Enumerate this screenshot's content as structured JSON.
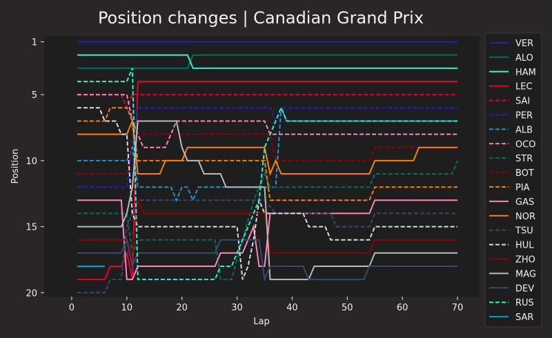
{
  "chart_data": {
    "type": "line",
    "title": "Position changes | Canadian Grand Prix",
    "xlabel": "Lap",
    "ylabel": "Position",
    "xlim": [
      -5,
      74
    ],
    "ylim": [
      20.3,
      0.6
    ],
    "y_inverted": true,
    "xticks": [
      0,
      10,
      20,
      30,
      40,
      50,
      60,
      70
    ],
    "yticks": [
      1,
      5,
      10,
      15,
      20
    ],
    "grid": false,
    "legend_position": "right-outside",
    "series": [
      {
        "name": "VER",
        "color": "#1e1ecc",
        "dash": false,
        "points": [
          [
            1,
            1
          ],
          [
            70,
            1
          ]
        ]
      },
      {
        "name": "ALO",
        "color": "#006f62",
        "dash": false,
        "points": [
          [
            1,
            3
          ],
          [
            21,
            3
          ],
          [
            22,
            2
          ],
          [
            70,
            2
          ]
        ]
      },
      {
        "name": "HAM",
        "color": "#27f4d2",
        "dash": false,
        "points": [
          [
            1,
            2
          ],
          [
            21,
            2
          ],
          [
            22,
            3
          ],
          [
            70,
            3
          ]
        ]
      },
      {
        "name": "LEC",
        "color": "#e8002d",
        "dash": false,
        "points": [
          [
            1,
            19
          ],
          [
            6,
            19
          ],
          [
            7,
            18
          ],
          [
            9,
            18
          ],
          [
            10,
            17
          ],
          [
            11,
            19
          ],
          [
            12,
            4
          ],
          [
            70,
            4
          ]
        ]
      },
      {
        "name": "SAI",
        "color": "#e8002d",
        "dash": true,
        "points": [
          [
            1,
            5
          ],
          [
            9,
            5
          ],
          [
            10,
            6
          ],
          [
            11,
            5
          ],
          [
            12,
            5
          ],
          [
            70,
            5
          ]
        ]
      },
      {
        "name": "PER",
        "color": "#1e1ecc",
        "dash": true,
        "points": [
          [
            1,
            12
          ],
          [
            10,
            12
          ],
          [
            11,
            9
          ],
          [
            12,
            6
          ],
          [
            36,
            6
          ],
          [
            37,
            7
          ],
          [
            38,
            6
          ],
          [
            70,
            6
          ]
        ]
      },
      {
        "name": "ALB",
        "color": "#2293d1",
        "dash": true,
        "points": [
          [
            1,
            10
          ],
          [
            10,
            10
          ],
          [
            11,
            9
          ],
          [
            12,
            12
          ],
          [
            18,
            12
          ],
          [
            19,
            13
          ],
          [
            20,
            12
          ],
          [
            21,
            12
          ],
          [
            22,
            13
          ],
          [
            23,
            12
          ],
          [
            37,
            12
          ],
          [
            38,
            6
          ],
          [
            39,
            7
          ],
          [
            70,
            7
          ]
        ]
      },
      {
        "name": "OCO",
        "color": "#ff87bc",
        "dash": true,
        "points": [
          [
            1,
            5
          ],
          [
            10,
            5
          ],
          [
            11,
            7
          ],
          [
            12,
            8
          ],
          [
            13,
            9
          ],
          [
            17,
            9
          ],
          [
            18,
            8
          ],
          [
            19,
            7
          ],
          [
            35,
            7
          ],
          [
            36,
            8
          ],
          [
            37,
            8
          ],
          [
            54,
            8
          ],
          [
            55,
            8
          ],
          [
            70,
            8
          ]
        ]
      },
      {
        "name": "STR",
        "color": "#006f62",
        "dash": true,
        "points": [
          [
            1,
            14
          ],
          [
            10,
            14
          ],
          [
            11,
            17
          ],
          [
            12,
            16
          ],
          [
            26,
            16
          ],
          [
            27,
            19
          ],
          [
            28,
            19
          ],
          [
            29,
            19
          ],
          [
            33,
            13
          ],
          [
            34,
            12
          ],
          [
            35,
            11
          ],
          [
            36,
            12
          ],
          [
            54,
            12
          ],
          [
            55,
            11
          ],
          [
            69,
            11
          ],
          [
            70,
            10
          ]
        ]
      },
      {
        "name": "BOT",
        "color": "#900000",
        "dash": true,
        "points": [
          [
            1,
            11
          ],
          [
            10,
            11
          ],
          [
            11,
            8
          ],
          [
            36,
            8
          ],
          [
            37,
            10
          ],
          [
            54,
            10
          ],
          [
            55,
            9
          ],
          [
            70,
            9
          ]
        ]
      },
      {
        "name": "PIA",
        "color": "#ff8000",
        "dash": true,
        "points": [
          [
            1,
            7
          ],
          [
            6,
            7
          ],
          [
            7,
            6
          ],
          [
            10,
            6
          ],
          [
            11,
            7
          ],
          [
            12,
            10
          ],
          [
            35,
            10
          ],
          [
            36,
            13
          ],
          [
            54,
            13
          ],
          [
            55,
            12
          ],
          [
            70,
            12
          ]
        ]
      },
      {
        "name": "GAS",
        "color": "#ff87bc",
        "dash": false,
        "points": [
          [
            1,
            13
          ],
          [
            9,
            13
          ],
          [
            10,
            19
          ],
          [
            11,
            19
          ],
          [
            12,
            18
          ],
          [
            26,
            18
          ],
          [
            27,
            17
          ],
          [
            31,
            17
          ],
          [
            32,
            16
          ],
          [
            33,
            15
          ],
          [
            34,
            18
          ],
          [
            35,
            18
          ],
          [
            36,
            14
          ],
          [
            42,
            14
          ],
          [
            43,
            14
          ],
          [
            54,
            14
          ],
          [
            55,
            13
          ],
          [
            70,
            13
          ]
        ]
      },
      {
        "name": "NOR",
        "color": "#ff8000",
        "dash": false,
        "points": [
          [
            1,
            8
          ],
          [
            10,
            8
          ],
          [
            11,
            7
          ],
          [
            12,
            11
          ],
          [
            16,
            11
          ],
          [
            17,
            10
          ],
          [
            20,
            10
          ],
          [
            21,
            9
          ],
          [
            35,
            9
          ],
          [
            36,
            11
          ],
          [
            37,
            10
          ],
          [
            38,
            11
          ],
          [
            54,
            11
          ],
          [
            55,
            10
          ],
          [
            62,
            10
          ],
          [
            63,
            9
          ],
          [
            70,
            9
          ]
        ]
      },
      {
        "name": "TSU",
        "color": "#364a70",
        "dash": true,
        "points": [
          [
            1,
            20
          ],
          [
            6,
            20
          ],
          [
            7,
            19
          ],
          [
            9,
            19
          ],
          [
            10,
            15
          ],
          [
            11,
            14
          ],
          [
            12,
            13
          ],
          [
            34,
            13
          ],
          [
            35,
            13
          ],
          [
            37,
            14
          ],
          [
            47,
            14
          ],
          [
            48,
            15
          ],
          [
            54,
            15
          ],
          [
            55,
            14
          ],
          [
            70,
            14
          ]
        ]
      },
      {
        "name": "HUL",
        "color": "#dddddd",
        "dash": true,
        "points": [
          [
            1,
            6
          ],
          [
            5,
            6
          ],
          [
            6,
            7
          ],
          [
            8,
            7
          ],
          [
            9,
            8
          ],
          [
            10,
            8
          ],
          [
            11,
            14
          ],
          [
            12,
            15
          ],
          [
            30,
            15
          ],
          [
            31,
            19
          ],
          [
            32,
            18
          ],
          [
            33,
            16
          ],
          [
            34,
            13
          ],
          [
            35,
            14
          ],
          [
            36,
            14
          ],
          [
            42,
            14
          ],
          [
            43,
            15
          ],
          [
            46,
            15
          ],
          [
            47,
            16
          ],
          [
            54,
            16
          ],
          [
            55,
            15
          ],
          [
            70,
            15
          ]
        ]
      },
      {
        "name": "ZHO",
        "color": "#900000",
        "dash": false,
        "points": [
          [
            1,
            16
          ],
          [
            10,
            16
          ],
          [
            11,
            17
          ],
          [
            12,
            13
          ],
          [
            13,
            14
          ],
          [
            35,
            14
          ],
          [
            36,
            17
          ],
          [
            54,
            17
          ],
          [
            55,
            16
          ],
          [
            70,
            16
          ]
        ]
      },
      {
        "name": "MAG",
        "color": "#bbbbbb",
        "dash": false,
        "points": [
          [
            1,
            15
          ],
          [
            9,
            15
          ],
          [
            10,
            14
          ],
          [
            11,
            12
          ],
          [
            12,
            7
          ],
          [
            19,
            7
          ],
          [
            20,
            9
          ],
          [
            21,
            10
          ],
          [
            23,
            10
          ],
          [
            24,
            11
          ],
          [
            27,
            11
          ],
          [
            28,
            12
          ],
          [
            35,
            12
          ],
          [
            36,
            19
          ],
          [
            43,
            19
          ],
          [
            44,
            18
          ],
          [
            54,
            18
          ],
          [
            55,
            17
          ],
          [
            70,
            17
          ]
        ]
      },
      {
        "name": "DEV",
        "color": "#364a70",
        "dash": false,
        "points": [
          [
            1,
            17
          ],
          [
            9,
            17
          ],
          [
            10,
            16
          ],
          [
            11,
            18
          ],
          [
            12,
            17
          ],
          [
            26,
            17
          ],
          [
            27,
            16
          ],
          [
            34,
            16
          ],
          [
            35,
            19
          ],
          [
            36,
            18
          ],
          [
            42,
            18
          ],
          [
            43,
            19
          ],
          [
            53,
            19
          ],
          [
            54,
            18
          ],
          [
            70,
            18
          ]
        ]
      },
      {
        "name": "RUS",
        "color": "#27f4d2",
        "dash": true,
        "points": [
          [
            1,
            4
          ],
          [
            10,
            4
          ],
          [
            11,
            3
          ],
          [
            12,
            19
          ],
          [
            26,
            19
          ],
          [
            27,
            18
          ],
          [
            29,
            18
          ],
          [
            30,
            17
          ],
          [
            32,
            15
          ],
          [
            33,
            14
          ],
          [
            34,
            13
          ],
          [
            35,
            9
          ],
          [
            36,
            8
          ],
          [
            37,
            7
          ],
          [
            38,
            6
          ],
          [
            39,
            7
          ],
          [
            70,
            7
          ]
        ]
      },
      {
        "name": "SAR",
        "color": "#00a0dd",
        "dash": false,
        "points": [
          [
            1,
            18
          ],
          [
            6,
            18
          ]
        ]
      }
    ]
  }
}
